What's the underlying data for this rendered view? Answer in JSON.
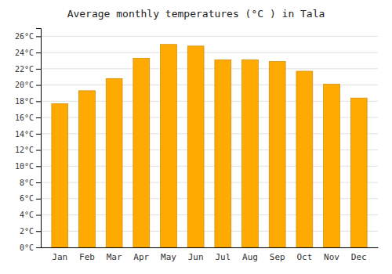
{
  "chart_data": {
    "type": "bar",
    "title": "Average monthly temperatures (°C ) in Tala",
    "categories": [
      "Jan",
      "Feb",
      "Mar",
      "Apr",
      "May",
      "Jun",
      "Jul",
      "Aug",
      "Sep",
      "Oct",
      "Nov",
      "Dec"
    ],
    "values": [
      17.7,
      19.3,
      20.8,
      23.3,
      25.0,
      24.8,
      23.1,
      23.1,
      22.9,
      21.7,
      20.1,
      18.4
    ],
    "color": "#FFAA00",
    "ylim": [
      0,
      27
    ],
    "yticks": [
      {
        "value": 0,
        "label": "0°C"
      },
      {
        "value": 2,
        "label": "2°C"
      },
      {
        "value": 4,
        "label": "4°C"
      },
      {
        "value": 6,
        "label": "6°C"
      },
      {
        "value": 8,
        "label": "8°C"
      },
      {
        "value": 10,
        "label": "10°C"
      },
      {
        "value": 12,
        "label": "12°C"
      },
      {
        "value": 14,
        "label": "14°C"
      },
      {
        "value": 16,
        "label": "16°C"
      },
      {
        "value": 18,
        "label": "18°C"
      },
      {
        "value": 20,
        "label": "20°C"
      },
      {
        "value": 22,
        "label": "22°C"
      },
      {
        "value": 24,
        "label": "24°C"
      },
      {
        "value": 26,
        "label": "26°C"
      }
    ],
    "grid": true
  }
}
